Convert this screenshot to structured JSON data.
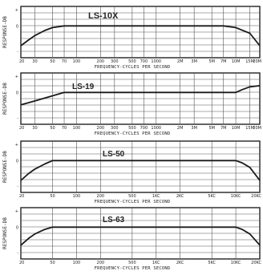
{
  "chart_data": [
    {
      "type": "line",
      "title": "LS-10X",
      "ylabel": "RESPONSE-DB",
      "xlabel": "FREQUENCY-CYCLES PER SECOND",
      "x_scale": "log",
      "xlim": [
        20,
        20000
      ],
      "y_ticks": [
        "+",
        "0",
        "-"
      ],
      "x_ticks": [
        {
          "label": "20",
          "value": 20
        },
        {
          "label": "30",
          "value": 30
        },
        {
          "label": "50",
          "value": 50
        },
        {
          "label": "70",
          "value": 70
        },
        {
          "label": "100",
          "value": 100
        },
        {
          "label": "200",
          "value": 200
        },
        {
          "label": "300",
          "value": 300
        },
        {
          "label": "500",
          "value": 500
        },
        {
          "label": "700",
          "value": 700
        },
        {
          "label": "1000",
          "value": 1000
        },
        {
          "label": "2M",
          "value": 2000
        },
        {
          "label": "3M",
          "value": 3000
        },
        {
          "label": "5M",
          "value": 5000
        },
        {
          "label": "7M",
          "value": 7000
        },
        {
          "label": "10M",
          "value": 10000
        },
        {
          "label": "15M",
          "value": 15000
        },
        {
          "label": "20M",
          "value": 20000
        }
      ],
      "series": [
        {
          "values": [
            {
              "x": 20,
              "y": -3.5
            },
            {
              "x": 25,
              "y": -2.5
            },
            {
              "x": 30,
              "y": -1.7
            },
            {
              "x": 40,
              "y": -0.8
            },
            {
              "x": 50,
              "y": -0.3
            },
            {
              "x": 70,
              "y": 0
            },
            {
              "x": 100,
              "y": 0
            },
            {
              "x": 1000,
              "y": 0
            },
            {
              "x": 7000,
              "y": 0
            },
            {
              "x": 10000,
              "y": -0.3
            },
            {
              "x": 15000,
              "y": -1.3
            },
            {
              "x": 20000,
              "y": -3.5
            }
          ]
        }
      ],
      "colors": {
        "line": "#1a1a1a",
        "grid": "#555555"
      }
    },
    {
      "type": "line",
      "title": "LS-19",
      "ylabel": "RESPONSE-DB",
      "xlabel": "FREQUENCY-CYCLES PER SECOND",
      "x_scale": "log",
      "xlim": [
        20,
        20000
      ],
      "y_ticks": [
        "+",
        "0",
        "-"
      ],
      "x_ticks": [
        {
          "label": "20",
          "value": 20
        },
        {
          "label": "30",
          "value": 30
        },
        {
          "label": "50",
          "value": 50
        },
        {
          "label": "70",
          "value": 70
        },
        {
          "label": "100",
          "value": 100
        },
        {
          "label": "200",
          "value": 200
        },
        {
          "label": "300",
          "value": 300
        },
        {
          "label": "500",
          "value": 500
        },
        {
          "label": "700",
          "value": 700
        },
        {
          "label": "1000",
          "value": 1000
        },
        {
          "label": "2M",
          "value": 2000
        },
        {
          "label": "3M",
          "value": 3000
        },
        {
          "label": "5M",
          "value": 5000
        },
        {
          "label": "7M",
          "value": 7000
        },
        {
          "label": "10M",
          "value": 10000
        },
        {
          "label": "15M",
          "value": 15000
        },
        {
          "label": "20M",
          "value": 20000
        }
      ],
      "series": [
        {
          "values": [
            {
              "x": 20,
              "y": -2.2
            },
            {
              "x": 30,
              "y": -1.5
            },
            {
              "x": 50,
              "y": -0.6
            },
            {
              "x": 70,
              "y": 0
            },
            {
              "x": 1000,
              "y": 0
            },
            {
              "x": 10000,
              "y": 0
            },
            {
              "x": 12000,
              "y": 0.5
            },
            {
              "x": 15000,
              "y": 1.0
            },
            {
              "x": 20000,
              "y": 1.2
            }
          ]
        }
      ],
      "colors": {
        "line": "#1a1a1a",
        "grid": "#555555"
      }
    },
    {
      "type": "line",
      "title": "LS-50",
      "ylabel": "RESPONSE-DB",
      "xlabel": "FREQUENCY-CYCLES PER SECOND",
      "x_scale": "log",
      "xlim": [
        20,
        20000
      ],
      "y_ticks": [
        "+",
        "0",
        "-"
      ],
      "x_ticks": [
        {
          "label": "20",
          "value": 20
        },
        {
          "label": "50",
          "value": 50
        },
        {
          "label": "100",
          "value": 100
        },
        {
          "label": "200",
          "value": 200
        },
        {
          "label": "500",
          "value": 500
        },
        {
          "label": "1KC",
          "value": 1000
        },
        {
          "label": "2KC",
          "value": 2000
        },
        {
          "label": "5KC",
          "value": 5000
        },
        {
          "label": "10KC",
          "value": 10000
        },
        {
          "label": "20KC",
          "value": 20000
        }
      ],
      "series": [
        {
          "values": [
            {
              "x": 20,
              "y": -3.5
            },
            {
              "x": 25,
              "y": -2.3
            },
            {
              "x": 30,
              "y": -1.5
            },
            {
              "x": 40,
              "y": -0.6
            },
            {
              "x": 50,
              "y": 0
            },
            {
              "x": 1000,
              "y": 0
            },
            {
              "x": 10000,
              "y": 0
            },
            {
              "x": 12000,
              "y": -0.4
            },
            {
              "x": 15000,
              "y": -1.2
            },
            {
              "x": 20000,
              "y": -3.5
            }
          ]
        }
      ],
      "colors": {
        "line": "#1a1a1a",
        "grid": "#555555"
      }
    },
    {
      "type": "line",
      "title": "LS-63",
      "ylabel": "RESPONSE-DB",
      "xlabel": "FREQUENCY-CYCLES PER SECOND",
      "x_scale": "log",
      "xlim": [
        20,
        20000
      ],
      "y_ticks": [
        "+",
        "0",
        "-"
      ],
      "x_ticks": [
        {
          "label": "20",
          "value": 20
        },
        {
          "label": "50",
          "value": 50
        },
        {
          "label": "100",
          "value": 100
        },
        {
          "label": "200",
          "value": 200
        },
        {
          "label": "500",
          "value": 500
        },
        {
          "label": "1KC",
          "value": 1000
        },
        {
          "label": "2KC",
          "value": 2000
        },
        {
          "label": "5KC",
          "value": 5000
        },
        {
          "label": "10KC",
          "value": 10000
        },
        {
          "label": "20KC",
          "value": 20000
        }
      ],
      "series": [
        {
          "values": [
            {
              "x": 20,
              "y": -3.2
            },
            {
              "x": 25,
              "y": -2.0
            },
            {
              "x": 30,
              "y": -1.2
            },
            {
              "x": 40,
              "y": -0.4
            },
            {
              "x": 50,
              "y": 0
            },
            {
              "x": 1000,
              "y": 0
            },
            {
              "x": 10000,
              "y": 0
            },
            {
              "x": 12000,
              "y": -0.4
            },
            {
              "x": 15000,
              "y": -1.2
            },
            {
              "x": 20000,
              "y": -3.2
            }
          ]
        }
      ],
      "colors": {
        "line": "#1a1a1a",
        "grid": "#555555"
      }
    }
  ]
}
